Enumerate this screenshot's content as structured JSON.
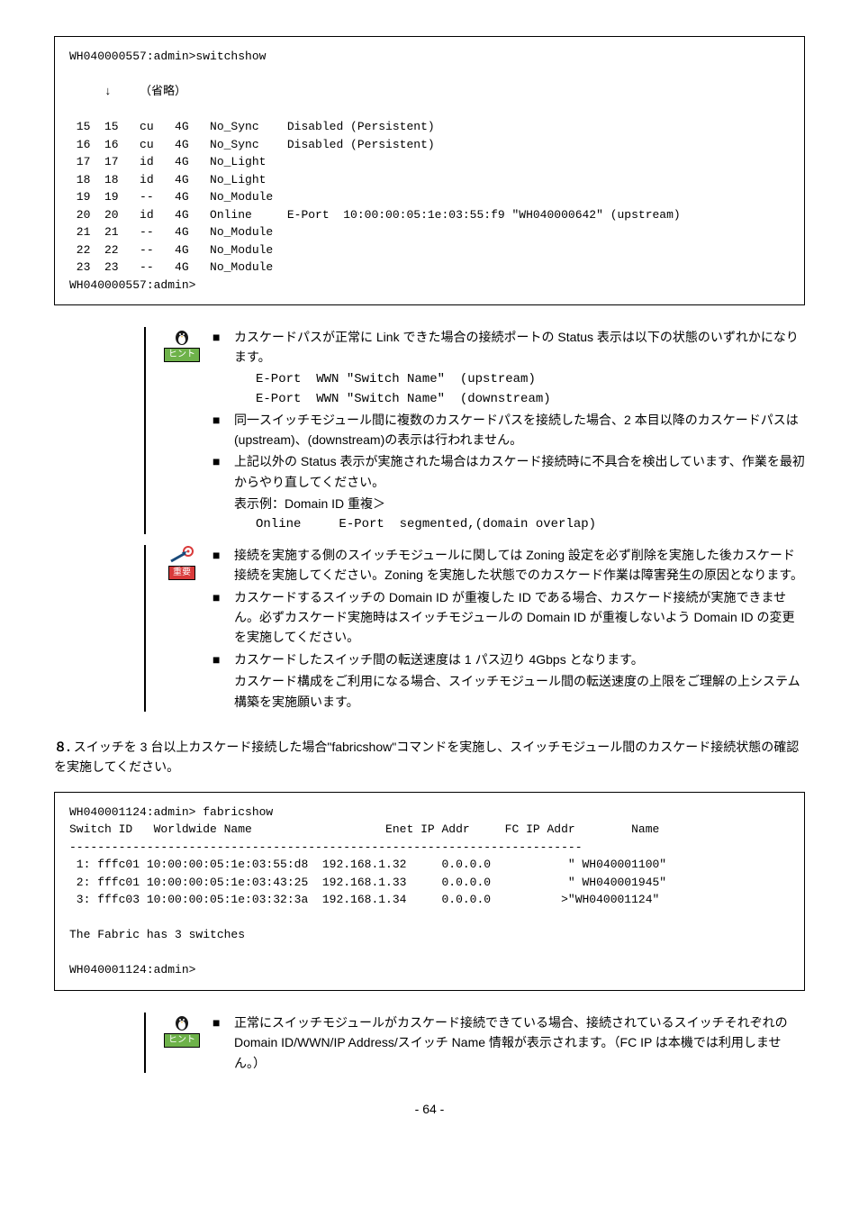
{
  "terminal1": {
    "header": "WH040000557:admin>switchshow",
    "ellipsis_label": "（省略）",
    "footer": "WH040000557:admin>",
    "rows": [
      {
        "p": "15",
        "idx": "15",
        "t": "cu",
        "sp": "4G",
        "st": "No_Sync",
        "extra": "Disabled (Persistent)"
      },
      {
        "p": "16",
        "idx": "16",
        "t": "cu",
        "sp": "4G",
        "st": "No_Sync",
        "extra": "Disabled (Persistent)"
      },
      {
        "p": "17",
        "idx": "17",
        "t": "id",
        "sp": "4G",
        "st": "No_Light",
        "extra": ""
      },
      {
        "p": "18",
        "idx": "18",
        "t": "id",
        "sp": "4G",
        "st": "No_Light",
        "extra": ""
      },
      {
        "p": "19",
        "idx": "19",
        "t": "--",
        "sp": "4G",
        "st": "No_Module",
        "extra": ""
      },
      {
        "p": "20",
        "idx": "20",
        "t": "id",
        "sp": "4G",
        "st": "Online",
        "extra": "E-Port  10:00:00:05:1e:03:55:f9 \"WH040000642\" (upstream)"
      },
      {
        "p": "21",
        "idx": "21",
        "t": "--",
        "sp": "4G",
        "st": "No_Module",
        "extra": ""
      },
      {
        "p": "22",
        "idx": "22",
        "t": "--",
        "sp": "4G",
        "st": "No_Module",
        "extra": ""
      },
      {
        "p": "23",
        "idx": "23",
        "t": "--",
        "sp": "4G",
        "st": "No_Module",
        "extra": ""
      }
    ]
  },
  "hint1": {
    "label": "ヒント",
    "items": [
      {
        "text": "カスケードパスが正常に Link できた場合の接続ポートの Status 表示は以下の状態のいずれかになります。",
        "sub": [
          "E-Port  WWN \"Switch Name\"  (upstream)",
          "E-Port  WWN \"Switch Name\"  (downstream)"
        ]
      },
      {
        "text": "同一スイッチモジュール間に複数のカスケードパスを接続した場合、2 本目以降のカスケードパスは(upstream)、(downstream)の表示は行われません。"
      },
      {
        "text": "上記以外の Status 表示が実施された場合はカスケード接続時に不具合を検出しています、作業を最初からやり直してください。",
        "extra": "表示例：Domain ID 重複＞",
        "sub": [
          "Online     E-Port  segmented,(domain overlap)"
        ]
      }
    ]
  },
  "important1": {
    "label": "重要",
    "items": [
      {
        "text": "接続を実施する側のスイッチモジュールに関しては Zoning 設定を必ず削除を実施した後カスケード接続を実施してください。Zoning を実施した状態でのカスケード作業は障害発生の原因となります。"
      },
      {
        "text": "カスケードするスイッチの Domain ID が重複した ID である場合、カスケード接続が実施できません。必ずカスケード実施時はスイッチモジュールの Domain ID が重複しないよう Domain ID の変更を実施してください。"
      },
      {
        "text": "カスケードしたスイッチ間の転送速度は 1 パス辺り 4Gbps となります。",
        "extra": "カスケード構成をご利用になる場合、スイッチモジュール間の転送速度の上限をご理解の上システム構築を実施願います。"
      }
    ]
  },
  "step8": {
    "num": "８.",
    "text": "スイッチを 3 台以上カスケード接続した場合\"fabricshow\"コマンドを実施し、スイッチモジュール間のカスケード接続状態の確認を実施してください。"
  },
  "terminal2": {
    "header": "WH040001124:admin> fabricshow",
    "col_header": "Switch ID   Worldwide Name                   Enet IP Addr     FC IP Addr        Name",
    "divider": "-------------------------------------------------------------------------",
    "rows": [
      " 1: fffc01 10:00:00:05:1e:03:55:d8  192.168.1.32     0.0.0.0           \" WH040001100\"",
      " 2: fffc01 10:00:00:05:1e:03:43:25  192.168.1.33     0.0.0.0           \" WH040001945\"",
      " 3: fffc03 10:00:00:05:1e:03:32:3a  192.168.1.34     0.0.0.0          >\"WH040001124\""
    ],
    "summary": "The Fabric has 3 switches",
    "footer": "WH040001124:admin>"
  },
  "hint2": {
    "label": "ヒント",
    "items": [
      {
        "text": "正常にスイッチモジュールがカスケード接続できている場合、接続されているスイッチそれぞれの Domain ID/WWN/IP Address/スイッチ Name 情報が表示されます。（FC IP は本機では利用しません。）"
      }
    ]
  },
  "page_num": "- 64 -"
}
